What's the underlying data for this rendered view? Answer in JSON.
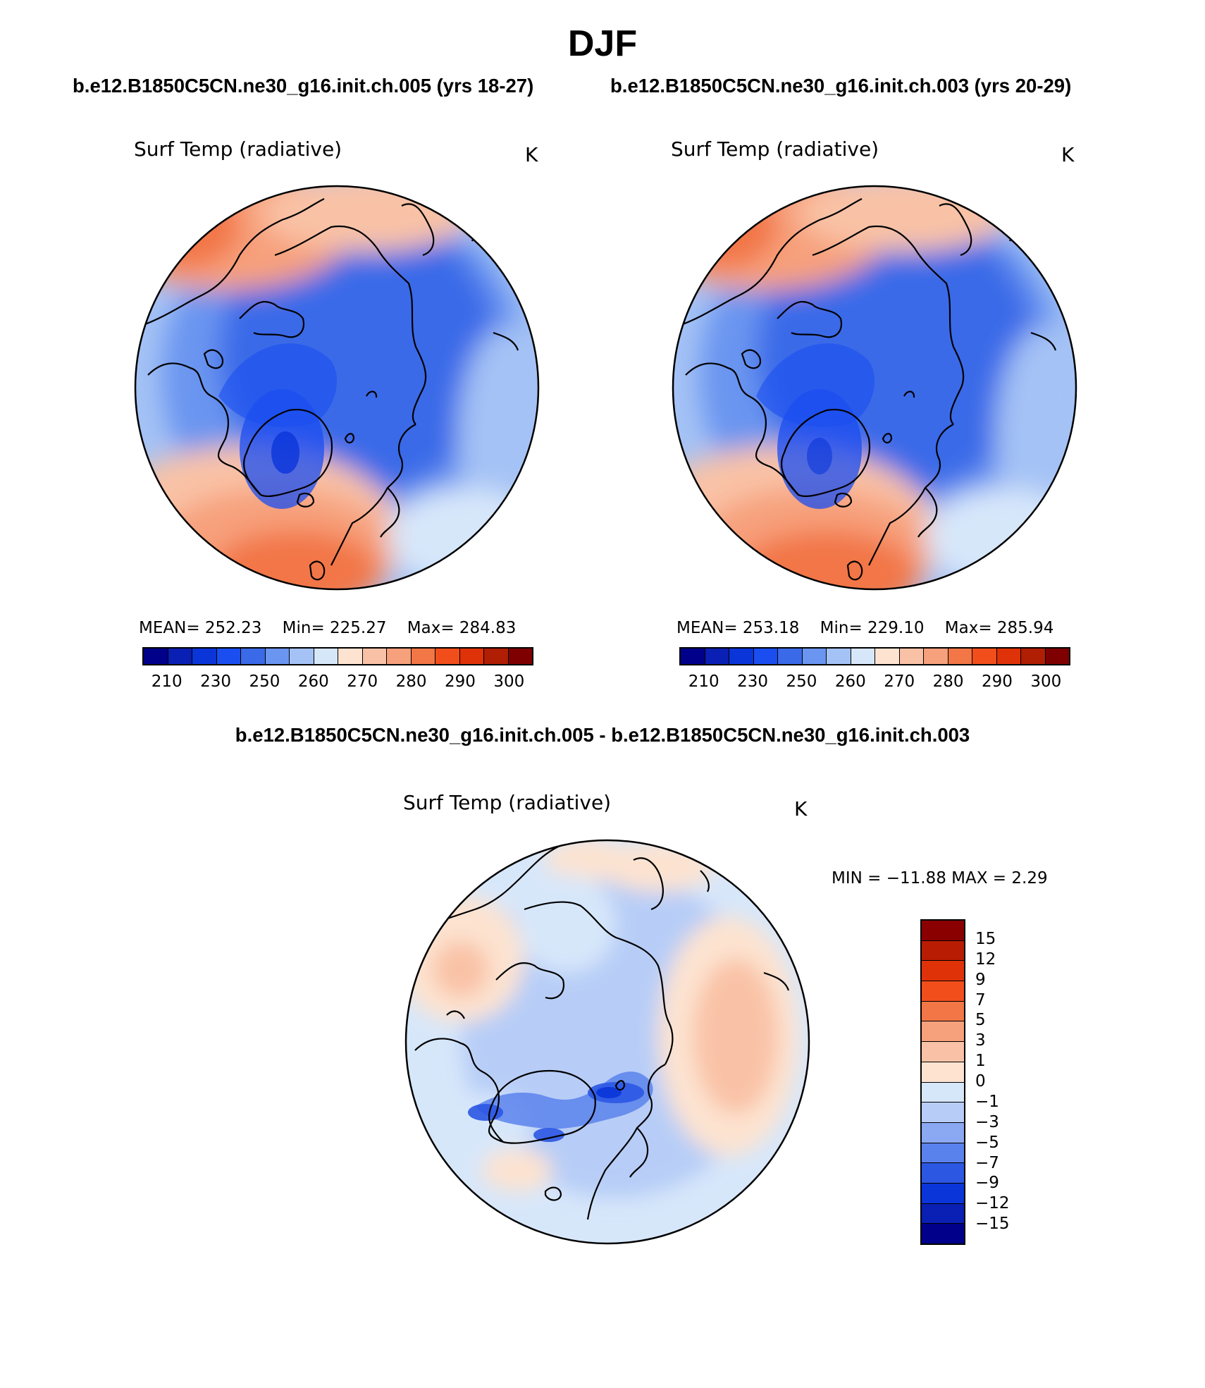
{
  "figure": {
    "season": "DJF",
    "case_left": "b.e12.B1850C5CN.ne30_g16.init.ch.005 (yrs 18-27)",
    "case_right": "b.e12.B1850C5CN.ne30_g16.init.ch.003 (yrs 20-29)",
    "diff_title": "b.e12.B1850C5CN.ne30_g16.init.ch.005 - b.e12.B1850C5CN.ne30_g16.init.ch.003"
  },
  "panels": [
    {
      "variable": "Surf Temp (radiative)",
      "units": "K",
      "mean_text": "MEAN= 252.23",
      "min_text": "Min= 225.27",
      "max_text": "Max= 284.83",
      "ticks": [
        "210",
        "230",
        "250",
        "260",
        "270",
        "280",
        "290",
        "300"
      ]
    },
    {
      "variable": "Surf Temp (radiative)",
      "units": "K",
      "mean_text": "MEAN= 253.18",
      "min_text": "Min= 229.10",
      "max_text": "Max= 285.94",
      "ticks": [
        "210",
        "230",
        "250",
        "260",
        "270",
        "280",
        "290",
        "300"
      ]
    }
  ],
  "diff_panel": {
    "variable": "Surf Temp (radiative)",
    "units": "K",
    "minmax_text": "MIN = −11.88  MAX =    2.29",
    "ticks": [
      "15",
      "12",
      "9",
      "7",
      "5",
      "3",
      "1",
      "0",
      "−1",
      "−3",
      "−5",
      "−7",
      "−9",
      "−12",
      "−15"
    ]
  },
  "colors": {
    "abs_scale": [
      "#00008a",
      "#0a1fb3",
      "#0a35d9",
      "#1a4ef0",
      "#3a6ae8",
      "#6a95f0",
      "#a4c2f5",
      "#d7e7fa",
      "#fde3d0",
      "#f9c2a6",
      "#f7a07c",
      "#f27646",
      "#f24e1c",
      "#e03209",
      "#b01e04",
      "#7f0000"
    ],
    "diff_scale": [
      "#8a0000",
      "#b81c02",
      "#e03209",
      "#f24e1c",
      "#f27646",
      "#f7a07c",
      "#f9c2a6",
      "#fde3d0",
      "#d7e7fa",
      "#b7cdf7",
      "#8aa9f2",
      "#5a82ec",
      "#2b57e3",
      "#0a35d9",
      "#0a1fb3",
      "#00008a"
    ]
  },
  "chart_data": [
    {
      "type": "heatmap",
      "projection": "north-polar-stereographic",
      "title": "Surf Temp (radiative)",
      "case": "b.e12.B1850C5CN.ne30_g16.init.ch.005 (yrs 18-27)",
      "units": "K",
      "mean": 252.23,
      "min": 225.27,
      "max": 284.83,
      "levels": [
        210,
        220,
        230,
        240,
        250,
        255,
        260,
        265,
        270,
        275,
        280,
        285,
        290,
        295,
        300
      ]
    },
    {
      "type": "heatmap",
      "projection": "north-polar-stereographic",
      "title": "Surf Temp (radiative)",
      "case": "b.e12.B1850C5CN.ne30_g16.init.ch.003 (yrs 20-29)",
      "units": "K",
      "mean": 253.18,
      "min": 229.1,
      "max": 285.94,
      "levels": [
        210,
        220,
        230,
        240,
        250,
        255,
        260,
        265,
        270,
        275,
        280,
        285,
        290,
        295,
        300
      ]
    },
    {
      "type": "heatmap",
      "projection": "north-polar-stereographic",
      "title": "Surf Temp (radiative)",
      "case": "b.e12.B1850C5CN.ne30_g16.init.ch.005 - b.e12.B1850C5CN.ne30_g16.init.ch.003",
      "units": "K",
      "min": -11.88,
      "max": 2.29,
      "levels": [
        -15,
        -12,
        -9,
        -7,
        -5,
        -3,
        -1,
        0,
        1,
        3,
        5,
        7,
        9,
        12,
        15
      ]
    }
  ]
}
